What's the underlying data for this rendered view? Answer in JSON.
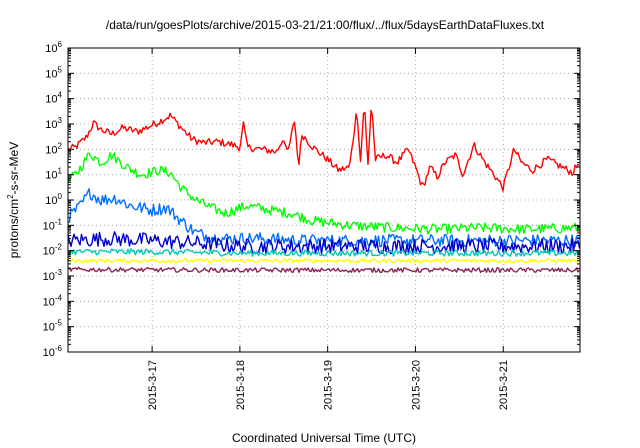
{
  "chart_data": {
    "type": "line",
    "title": "/data/run/goesPlots/archive/2015-03-21/21:00/flux/../flux/5daysEarthDataFluxes.txt",
    "xlabel": "Coordinated Universal Time (UTC)",
    "ylabel_main": "protons/cm",
    "ylabel_sup": "2",
    "ylabel_rest": "-s-sr-MeV",
    "yscale": "log",
    "grid": true,
    "xlim": [
      "2015-03-16T01:00",
      "2015-03-21T21:00"
    ],
    "ylim": [
      1e-06,
      1000000.0
    ],
    "x_ticks": [
      {
        "date": "2015-03-17",
        "label": "2015-3-17"
      },
      {
        "date": "2015-03-18",
        "label": "2015-3-18"
      },
      {
        "date": "2015-03-19",
        "label": "2015-3-19"
      },
      {
        "date": "2015-03-20",
        "label": "2015-3-20"
      },
      {
        "date": "2015-03-21",
        "label": "2015-3-21"
      }
    ],
    "y_ticks": [
      {
        "value": 1e-06,
        "base": "10",
        "exp": "-6"
      },
      {
        "value": 1e-05,
        "base": "10",
        "exp": "-5"
      },
      {
        "value": 0.0001,
        "base": "10",
        "exp": "-4"
      },
      {
        "value": 0.001,
        "base": "10",
        "exp": "-3"
      },
      {
        "value": 0.01,
        "base": "10",
        "exp": "-2"
      },
      {
        "value": 0.1,
        "base": "10",
        "exp": "-1"
      },
      {
        "value": 1,
        "base": "10",
        "exp": "0"
      },
      {
        "value": 10,
        "base": "10",
        "exp": "1"
      },
      {
        "value": 100,
        "base": "10",
        "exp": "2"
      },
      {
        "value": 1000,
        "base": "10",
        "exp": "3"
      },
      {
        "value": 10000,
        "base": "10",
        "exp": "4"
      },
      {
        "value": 100000,
        "base": "10",
        "exp": "5"
      },
      {
        "value": 1000000,
        "base": "10",
        "exp": "6"
      }
    ],
    "series": [
      {
        "color": "#ff0000",
        "noise": 0.15,
        "points": [
          [
            "2015-03-16T01:00",
            100
          ],
          [
            "2015-03-16T03:00",
            120
          ],
          [
            "2015-03-16T06:00",
            300
          ],
          [
            "2015-03-16T08:00",
            1100
          ],
          [
            "2015-03-16T10:00",
            600
          ],
          [
            "2015-03-16T13:00",
            400
          ],
          [
            "2015-03-16T16:00",
            700
          ],
          [
            "2015-03-16T20:00",
            500
          ],
          [
            "2015-03-17T00:00",
            900
          ],
          [
            "2015-03-17T03:00",
            1500
          ],
          [
            "2015-03-17T05:00",
            2200
          ],
          [
            "2015-03-17T08:00",
            700
          ],
          [
            "2015-03-17T11:00",
            250
          ],
          [
            "2015-03-17T14:00",
            180
          ],
          [
            "2015-03-17T18:00",
            200
          ],
          [
            "2015-03-17T22:00",
            150
          ],
          [
            "2015-03-18T00:00",
            120
          ],
          [
            "2015-03-18T01:00",
            1000
          ],
          [
            "2015-03-18T02:00",
            120
          ],
          [
            "2015-03-18T06:00",
            100
          ],
          [
            "2015-03-18T10:00",
            80
          ],
          [
            "2015-03-18T12:00",
            300
          ],
          [
            "2015-03-18T13:00",
            60
          ],
          [
            "2015-03-18T15:00",
            1500
          ],
          [
            "2015-03-18T16:00",
            20
          ],
          [
            "2015-03-18T17:00",
            400
          ],
          [
            "2015-03-18T20:00",
            120
          ],
          [
            "2015-03-19T00:00",
            40
          ],
          [
            "2015-03-19T03:00",
            15
          ],
          [
            "2015-03-19T06:00",
            20
          ],
          [
            "2015-03-19T08:00",
            4000
          ],
          [
            "2015-03-19T09:00",
            30
          ],
          [
            "2015-03-19T10:00",
            9000
          ],
          [
            "2015-03-19T11:00",
            20
          ],
          [
            "2015-03-19T12:00",
            9000
          ],
          [
            "2015-03-19T13:00",
            40
          ],
          [
            "2015-03-19T16:00",
            60
          ],
          [
            "2015-03-19T19:00",
            30
          ],
          [
            "2015-03-19T22:00",
            100
          ],
          [
            "2015-03-20T00:00",
            20
          ],
          [
            "2015-03-20T02:00",
            3
          ],
          [
            "2015-03-20T04:00",
            20
          ],
          [
            "2015-03-20T06:00",
            8
          ],
          [
            "2015-03-20T08:00",
            30
          ],
          [
            "2015-03-20T11:00",
            60
          ],
          [
            "2015-03-20T13:00",
            10
          ],
          [
            "2015-03-20T16:00",
            150
          ],
          [
            "2015-03-20T19:00",
            30
          ],
          [
            "2015-03-20T22:00",
            8
          ],
          [
            "2015-03-21T00:00",
            3
          ],
          [
            "2015-03-21T01:00",
            10
          ],
          [
            "2015-03-21T03:00",
            100
          ],
          [
            "2015-03-21T05:00",
            30
          ],
          [
            "2015-03-21T08:00",
            15
          ],
          [
            "2015-03-21T12:00",
            40
          ],
          [
            "2015-03-21T16:00",
            20
          ],
          [
            "2015-03-21T19:00",
            12
          ],
          [
            "2015-03-21T21:00",
            35
          ]
        ]
      },
      {
        "color": "#00ff00",
        "noise": 0.2,
        "points": [
          [
            "2015-03-16T01:00",
            5
          ],
          [
            "2015-03-16T04:00",
            15
          ],
          [
            "2015-03-16T07:00",
            70
          ],
          [
            "2015-03-16T10:00",
            30
          ],
          [
            "2015-03-16T13:00",
            60
          ],
          [
            "2015-03-16T17:00",
            20
          ],
          [
            "2015-03-16T21:00",
            10
          ],
          [
            "2015-03-17T02:00",
            15
          ],
          [
            "2015-03-17T05:00",
            12
          ],
          [
            "2015-03-17T08:00",
            3
          ],
          [
            "2015-03-17T12:00",
            1
          ],
          [
            "2015-03-17T16:00",
            0.5
          ],
          [
            "2015-03-17T20:00",
            0.3
          ],
          [
            "2015-03-18T02:00",
            0.6
          ],
          [
            "2015-03-18T08:00",
            0.4
          ],
          [
            "2015-03-18T14:00",
            0.3
          ],
          [
            "2015-03-18T20:00",
            0.15
          ],
          [
            "2015-03-19T06:00",
            0.1
          ],
          [
            "2015-03-19T18:00",
            0.08
          ],
          [
            "2015-03-20T06:00",
            0.07
          ],
          [
            "2015-03-20T18:00",
            0.08
          ],
          [
            "2015-03-21T06:00",
            0.07
          ],
          [
            "2015-03-21T21:00",
            0.08
          ]
        ]
      },
      {
        "color": "#0070ff",
        "noise": 0.25,
        "points": [
          [
            "2015-03-16T01:00",
            0.2
          ],
          [
            "2015-03-16T04:00",
            0.5
          ],
          [
            "2015-03-16T07:00",
            2
          ],
          [
            "2015-03-16T10:00",
            1
          ],
          [
            "2015-03-16T14:00",
            1.2
          ],
          [
            "2015-03-16T18:00",
            0.6
          ],
          [
            "2015-03-17T00:00",
            0.4
          ],
          [
            "2015-03-17T04:00",
            0.5
          ],
          [
            "2015-03-17T08:00",
            0.15
          ],
          [
            "2015-03-17T12:00",
            0.05
          ],
          [
            "2015-03-17T18:00",
            0.03
          ],
          [
            "2015-03-18T06:00",
            0.03
          ],
          [
            "2015-03-18T18:00",
            0.025
          ],
          [
            "2015-03-19T12:00",
            0.025
          ],
          [
            "2015-03-20T12:00",
            0.025
          ],
          [
            "2015-03-21T21:00",
            0.025
          ]
        ]
      },
      {
        "color": "#0000cc",
        "noise": 0.3,
        "points": [
          [
            "2015-03-16T01:00",
            0.025
          ],
          [
            "2015-03-16T12:00",
            0.03
          ],
          [
            "2015-03-17T00:00",
            0.025
          ],
          [
            "2015-03-17T12:00",
            0.02
          ],
          [
            "2015-03-18T00:00",
            0.015
          ],
          [
            "2015-03-19T00:00",
            0.015
          ],
          [
            "2015-03-20T00:00",
            0.015
          ],
          [
            "2015-03-21T00:00",
            0.015
          ],
          [
            "2015-03-21T21:00",
            0.015
          ]
        ]
      },
      {
        "color": "#00c8b4",
        "noise": 0.12,
        "points": [
          [
            "2015-03-16T01:00",
            0.009
          ],
          [
            "2015-03-17T00:00",
            0.009
          ],
          [
            "2015-03-18T00:00",
            0.008
          ],
          [
            "2015-03-19T00:00",
            0.008
          ],
          [
            "2015-03-20T00:00",
            0.008
          ],
          [
            "2015-03-21T21:00",
            0.008
          ]
        ]
      },
      {
        "color": "#ffff00",
        "noise": 0.08,
        "points": [
          [
            "2015-03-16T01:00",
            0.004
          ],
          [
            "2015-03-18T00:00",
            0.004
          ],
          [
            "2015-03-20T00:00",
            0.004
          ],
          [
            "2015-03-21T21:00",
            0.004
          ]
        ]
      },
      {
        "color": "#8b2252",
        "noise": 0.09,
        "points": [
          [
            "2015-03-16T01:00",
            0.0018
          ],
          [
            "2015-03-18T00:00",
            0.0017
          ],
          [
            "2015-03-20T00:00",
            0.0017
          ],
          [
            "2015-03-21T21:00",
            0.0017
          ]
        ]
      }
    ]
  }
}
